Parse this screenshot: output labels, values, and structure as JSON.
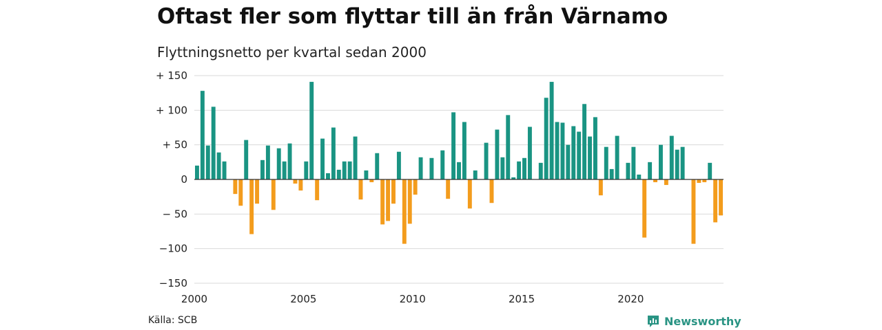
{
  "title": "Oftast fler som flyttar till än från Värnamo",
  "subtitle": "Flyttningsnetto per kvartal sedan 2000",
  "source": "Källa: SCB",
  "brand": "Newsworthy",
  "colors": {
    "positive": "#1a9483",
    "negative": "#f39c1d",
    "grid": "#d9d9d9",
    "baseline": "#333333"
  },
  "chart_data": {
    "type": "bar",
    "title": "Oftast fler som flyttar till än från Värnamo",
    "subtitle": "Flyttningsnetto per kvartal sedan 2000",
    "ylim": [
      -150,
      150
    ],
    "y_ticks": [
      {
        "value": 150,
        "label": "+ 150"
      },
      {
        "value": 100,
        "label": "+ 100"
      },
      {
        "value": 50,
        "label": "+  50"
      },
      {
        "value": 0,
        "label": "0"
      },
      {
        "value": -50,
        "label": "− 50"
      },
      {
        "value": -100,
        "label": "−100"
      },
      {
        "value": -150,
        "label": "−150"
      }
    ],
    "x_ticks": [
      "2000",
      "2005",
      "2010",
      "2015",
      "2020"
    ],
    "start_year": 2000,
    "grid": true,
    "values": [
      20,
      128,
      49,
      105,
      39,
      26,
      0,
      -21,
      -38,
      57,
      -79,
      -35,
      28,
      49,
      -44,
      45,
      26,
      52,
      -6,
      -16,
      26,
      141,
      -30,
      59,
      9,
      75,
      14,
      26,
      26,
      62,
      -29,
      13,
      -4,
      38,
      -65,
      -60,
      -35,
      40,
      -93,
      -64,
      -22,
      32,
      0,
      31,
      0,
      42,
      -28,
      97,
      25,
      83,
      -42,
      13,
      0,
      53,
      -34,
      72,
      32,
      93,
      3,
      26,
      31,
      76,
      0,
      24,
      118,
      141,
      83,
      82,
      50,
      77,
      69,
      109,
      62,
      90,
      -23,
      47,
      15,
      63,
      0,
      24,
      47,
      7,
      -84,
      25,
      -4,
      50,
      -8,
      63,
      43,
      47,
      0,
      -93,
      -5,
      -4,
      24,
      -62,
      -52
    ]
  }
}
